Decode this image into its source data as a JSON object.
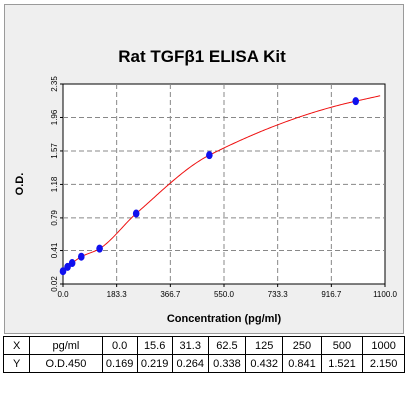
{
  "chart_data": {
    "type": "scatter",
    "title": "Rat TGFβ1 ELISA Kit",
    "xlabel": "Concentration (pg/ml)",
    "ylabel": "O.D.",
    "xlim": [
      0,
      1100
    ],
    "ylim": [
      0.02,
      2.35
    ],
    "x_ticks": [
      "0.0",
      "183.3",
      "366.7",
      "550.0",
      "733.3",
      "916.7",
      "1100.0"
    ],
    "x_tick_values": [
      0,
      183.3,
      366.7,
      550.0,
      733.3,
      916.7,
      1100.0
    ],
    "y_ticks": [
      "0.02",
      "0.41",
      "0.79",
      "1.18",
      "1.57",
      "1.96",
      "2.35"
    ],
    "y_tick_values": [
      0.02,
      0.41,
      0.79,
      1.18,
      1.57,
      1.96,
      2.35
    ],
    "grid": true,
    "series": [
      {
        "x": [
          0,
          15.6,
          31.3,
          62.5,
          125,
          250,
          500,
          1000
        ],
        "y": [
          0.169,
          0.219,
          0.264,
          0.338,
          0.432,
          0.841,
          1.521,
          2.15
        ],
        "color": "#1010ee"
      }
    ],
    "fit_curve": {
      "color": "#ee1111"
    }
  },
  "table": {
    "rows": [
      [
        "X",
        "pg/ml",
        "0.0",
        "15.6",
        "31.3",
        "62.5",
        "125",
        "250",
        "500",
        "1000"
      ],
      [
        "Y",
        "O.D.450",
        "0.169",
        "0.219",
        "0.264",
        "0.338",
        "0.432",
        "0.841",
        "1.521",
        "2.150"
      ]
    ]
  }
}
